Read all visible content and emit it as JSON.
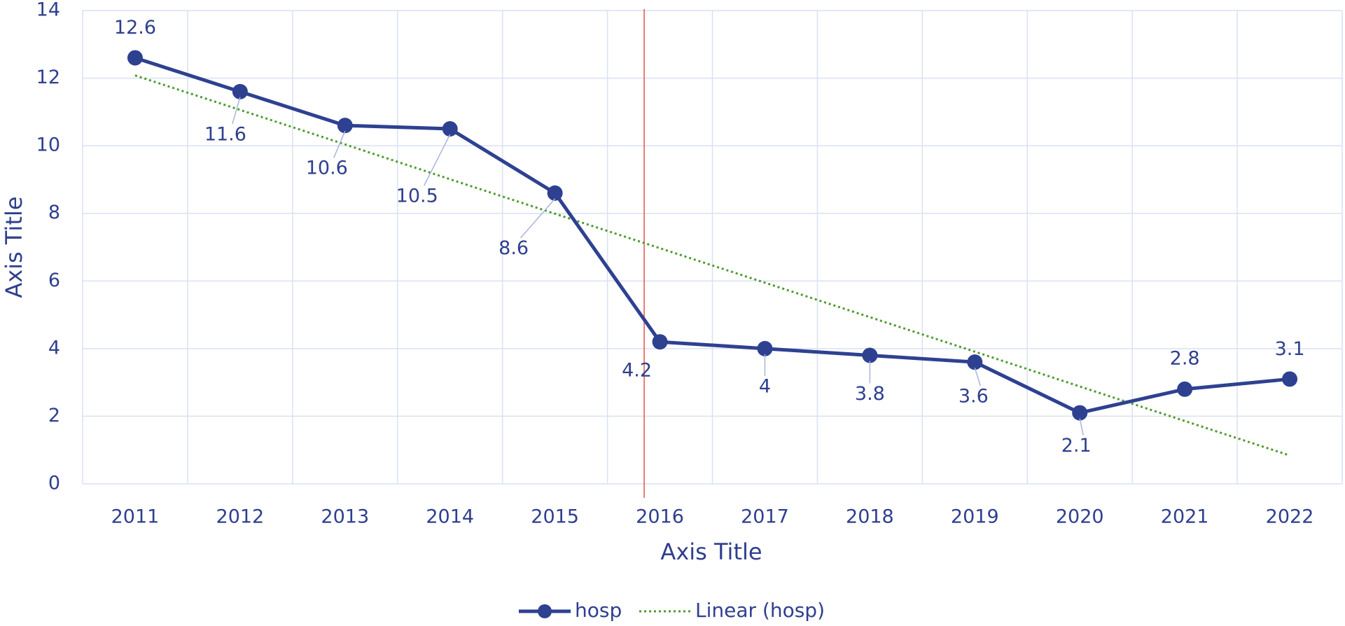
{
  "chart_data": {
    "type": "line",
    "categories": [
      "2011",
      "2012",
      "2013",
      "2014",
      "2015",
      "2016",
      "2017",
      "2018",
      "2019",
      "2020",
      "2021",
      "2022"
    ],
    "series": [
      {
        "name": "hosp",
        "color": "#2e4191",
        "values": [
          12.6,
          11.6,
          10.6,
          10.5,
          8.6,
          4.2,
          4,
          3.8,
          3.6,
          2.1,
          2.8,
          3.1
        ],
        "markers": true,
        "data_labels": true
      },
      {
        "name": "Linear (hosp)",
        "color": "#4e9a2e",
        "dash": "dotted",
        "values": [
          12.08,
          11.06,
          10.04,
          9.01,
          7.99,
          6.97,
          5.95,
          4.93,
          3.91,
          2.88,
          1.86,
          0.84
        ]
      }
    ],
    "ylim": [
      0,
      14
    ],
    "yticks": [
      0,
      2,
      4,
      6,
      8,
      10,
      12,
      14
    ],
    "x_axis_title": "Axis Title",
    "y_axis_title": "Axis Title",
    "grid": true,
    "legend": "bottom",
    "reference_line": {
      "position": 4.85,
      "color": "#e8534a"
    }
  }
}
